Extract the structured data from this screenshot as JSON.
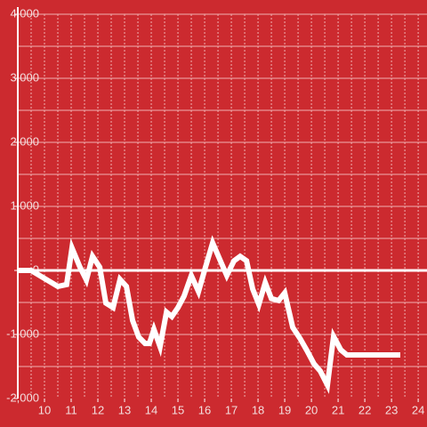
{
  "chart_data": {
    "type": "line",
    "background": "#cc2a2f",
    "x": [
      9,
      9.5,
      10.5,
      10.83,
      11.03,
      11.33,
      11.57,
      11.8,
      12.07,
      12.3,
      12.57,
      12.83,
      13.07,
      13.3,
      13.53,
      13.77,
      13.93,
      14.1,
      14.33,
      14.57,
      14.77,
      15,
      15.23,
      15.5,
      15.77,
      16.03,
      16.3,
      16.57,
      16.83,
      17.1,
      17.33,
      17.57,
      17.8,
      18.03,
      18.27,
      18.5,
      18.77,
      19,
      19.3,
      19.57,
      19.83,
      20.1,
      20.33,
      20.6,
      20.83,
      21.1,
      21.33,
      23.33
    ],
    "series": [
      {
        "color": "#ffffff",
        "values": [
          0,
          0,
          -250,
          -220,
          350,
          50,
          -150,
          220,
          50,
          -510,
          -580,
          -140,
          -250,
          -780,
          -1040,
          -1140,
          -1140,
          -920,
          -1190,
          -650,
          -720,
          -580,
          -400,
          -80,
          -330,
          50,
          430,
          170,
          -80,
          150,
          220,
          150,
          -290,
          -530,
          -190,
          -440,
          -470,
          -350,
          -890,
          -1060,
          -1250,
          -1460,
          -1570,
          -1790,
          -1030,
          -1240,
          -1320,
          -1320
        ]
      }
    ],
    "xlim": [
      9,
      24.33
    ],
    "xticks": [
      10,
      11,
      12,
      13,
      14,
      15,
      16,
      17,
      18,
      19,
      20,
      21,
      22,
      23,
      24
    ],
    "xgrid": [
      9.5,
      10,
      10.5,
      11,
      11.5,
      12,
      12.5,
      13,
      13.5,
      14,
      14.5,
      15,
      15.5,
      16,
      16.5,
      17,
      17.5,
      18,
      18.5,
      19,
      19.5,
      20,
      20.5,
      21,
      21.5,
      22,
      22.5,
      23,
      23.5,
      24
    ],
    "ylim": [
      -2000,
      4000
    ],
    "yticks": [
      {
        "value": -2000,
        "label": "-2,000"
      },
      {
        "value": -1000,
        "label": "-1,000"
      },
      0,
      {
        "value": 1000,
        "label": "1,000"
      },
      {
        "value": 2000,
        "label": "2,000"
      },
      {
        "value": 3000,
        "label": "3,000"
      },
      {
        "value": 4000,
        "label": "4,000"
      }
    ],
    "ygrid": [
      -1500,
      -1000,
      -500,
      500,
      1000,
      1500,
      2000,
      2500,
      3000,
      3500,
      4000
    ],
    "grid": true
  }
}
